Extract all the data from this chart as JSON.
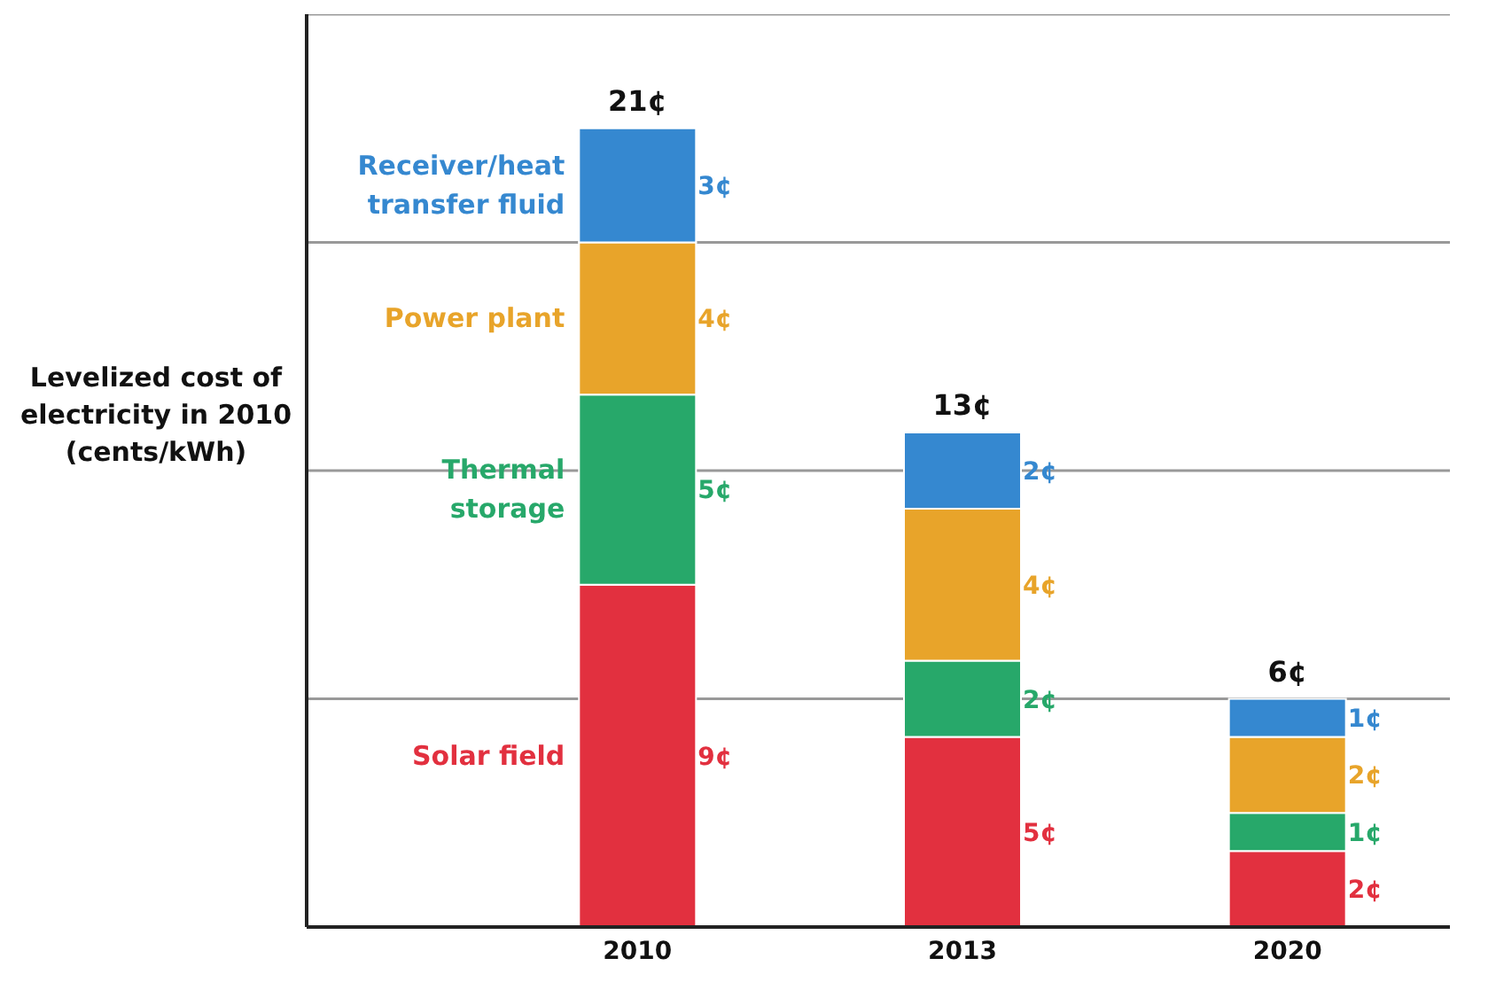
{
  "chart_data": {
    "type": "bar",
    "stacked": true,
    "ylabel": "Levelized cost of electricity in 2010 (cents/kWh)",
    "categories": [
      "2010",
      "2013",
      "2020"
    ],
    "series": [
      {
        "name": "Solar field",
        "color": "#e2303f",
        "values": [
          9,
          5,
          2
        ],
        "value_labels": [
          "9¢",
          "5¢",
          "2¢"
        ]
      },
      {
        "name": "Thermal storage",
        "color": "#27a86a",
        "values": [
          5,
          2,
          1
        ],
        "value_labels": [
          "5¢",
          "2¢",
          "1¢"
        ]
      },
      {
        "name": "Power plant",
        "color": "#e8a42a",
        "values": [
          4,
          4,
          2
        ],
        "value_labels": [
          "4¢",
          "4¢",
          "2¢"
        ]
      },
      {
        "name": "Receiver/heat transfer fluid",
        "color": "#3588d0",
        "values": [
          3,
          2,
          1
        ],
        "value_labels": [
          "3¢",
          "2¢",
          "1¢"
        ]
      }
    ],
    "totals": [
      "21¢",
      "13¢",
      "6¢"
    ],
    "grid": "y",
    "tick_labels": "x",
    "legend": false
  }
}
